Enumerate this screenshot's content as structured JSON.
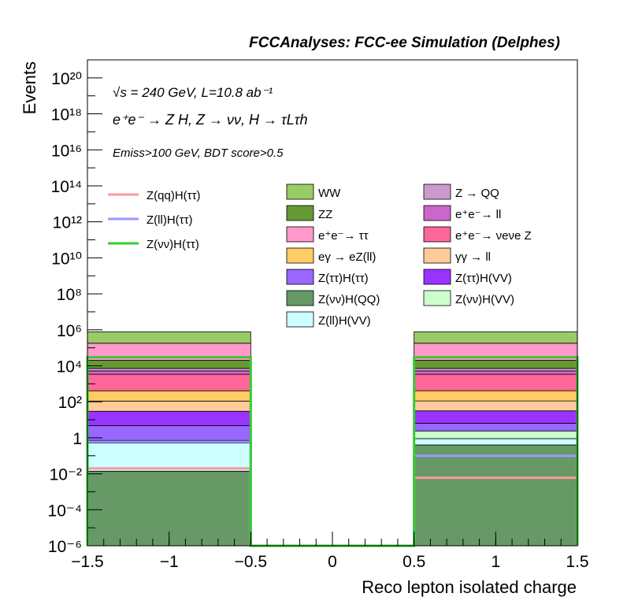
{
  "header": {
    "title": "FCCAnalyses: FCC-ee Simulation (Delphes)"
  },
  "annotations": {
    "energy_lumi": "√s = 240 GeV, L=10.8 ab⁻¹",
    "process": "e⁺e⁻ → Z H, Z → νν, H → τLτh",
    "selection": "Emiss>100 GeV, BDT score>0.5"
  },
  "chart_data": {
    "type": "bar",
    "stacked": true,
    "xlabel": "Reco lepton isolated charge",
    "ylabel": "Events",
    "xlim": [
      -1.5,
      1.5
    ],
    "ylim": [
      1e-06,
      1e+21
    ],
    "log_y": true,
    "bins": [
      [
        -1.5,
        -0.5
      ],
      [
        -0.5,
        0.5
      ],
      [
        0.5,
        1.5
      ]
    ],
    "x_tick_labels": [
      "−1.5",
      "−1",
      "−0.5",
      "0",
      "0.5",
      "1",
      "1.5"
    ],
    "y_tick_labels": [
      "10⁻⁶",
      "10⁻⁴",
      "10⁻²",
      "1",
      "10²",
      "10⁴",
      "10⁶",
      "10⁸",
      "10¹⁰",
      "10¹²",
      "10¹⁴",
      "10¹⁶",
      "10¹⁸",
      "10²⁰"
    ],
    "stack": [
      {
        "name": "Z(νν)H(QQ)",
        "color": "#669966",
        "values": [
          0.014,
          0,
          0.4
        ]
      },
      {
        "name": "Z(ll)H(VV)",
        "color": "#ccffff",
        "values": [
          0.5,
          0,
          0.5
        ]
      },
      {
        "name": "Z(νν)H(VV)",
        "color": "#ccffcc",
        "values": [
          0.2,
          0,
          1.5
        ]
      },
      {
        "name": "Z(ττ)H(ττ)",
        "color": "#9966ff",
        "values": [
          4,
          0,
          4
        ]
      },
      {
        "name": "Z(ττ)H(VV)",
        "color": "#9933ff",
        "values": [
          25,
          0,
          25
        ]
      },
      {
        "name": "γγ → ll",
        "color": "#ffcc99",
        "values": [
          80,
          0,
          80
        ]
      },
      {
        "name": "eγ → eZ(ll)",
        "color": "#ffcc66",
        "values": [
          300,
          0,
          300
        ]
      },
      {
        "name": "e⁺e⁻→ νeνe Z",
        "color": "#ff6699",
        "values": [
          3000,
          0,
          3000
        ]
      },
      {
        "name": "e⁺e⁻→ ll",
        "color": "#cc66cc",
        "values": [
          1800,
          0,
          1800
        ]
      },
      {
        "name": "Z → QQ",
        "color": "#cc99cc",
        "values": [
          2000,
          0,
          2000
        ]
      },
      {
        "name": "ZZ",
        "color": "#669933",
        "values": [
          13000,
          0,
          13000
        ]
      },
      {
        "name": "e⁺e⁻→ ττ",
        "color": "#ff99cc",
        "values": [
          160000,
          0,
          160000
        ]
      },
      {
        "name": "WW",
        "color": "#99cc66",
        "values": [
          600000,
          0,
          600000
        ]
      }
    ],
    "signals": [
      {
        "name": "Z(qq)H(ττ)",
        "color": "#ff9999",
        "values": [
          0.02,
          0,
          0.006
        ]
      },
      {
        "name": "Z(ll)H(ττ)",
        "color": "#9999ff",
        "values": [
          0.6,
          0,
          0.1
        ]
      },
      {
        "name": "Z(νν)H(ττ)",
        "color": "#33cc33",
        "values": [
          30000,
          0,
          30000
        ]
      }
    ]
  },
  "legend": {
    "signals": [
      {
        "label": "Z(qq)H(ττ)",
        "color": "#ff9999"
      },
      {
        "label": "Z(ll)H(ττ)",
        "color": "#9999ff"
      },
      {
        "label": "Z(νν)H(ττ)",
        "color": "#33cc33"
      }
    ],
    "col1": [
      {
        "label": "WW",
        "color": "#99cc66"
      },
      {
        "label": "ZZ",
        "color": "#669933"
      },
      {
        "label": "e⁺e⁻→ ττ",
        "color": "#ff99cc"
      },
      {
        "label": "eγ → eZ(ll)",
        "color": "#ffcc66"
      },
      {
        "label": "Z(ττ)H(ττ)",
        "color": "#9966ff"
      },
      {
        "label": "Z(νν)H(QQ)",
        "color": "#669966"
      },
      {
        "label": "Z(ll)H(VV)",
        "color": "#ccffff"
      }
    ],
    "col2": [
      {
        "label": "Z → QQ",
        "color": "#cc99cc"
      },
      {
        "label": "e⁺e⁻→ ll",
        "color": "#cc66cc"
      },
      {
        "label": "e⁺e⁻→ νeνe Z",
        "color": "#ff6699"
      },
      {
        "label": "γγ → ll",
        "color": "#ffcc99"
      },
      {
        "label": "Z(ττ)H(VV)",
        "color": "#9933ff"
      },
      {
        "label": "Z(νν)H(VV)",
        "color": "#ccffcc"
      }
    ]
  }
}
